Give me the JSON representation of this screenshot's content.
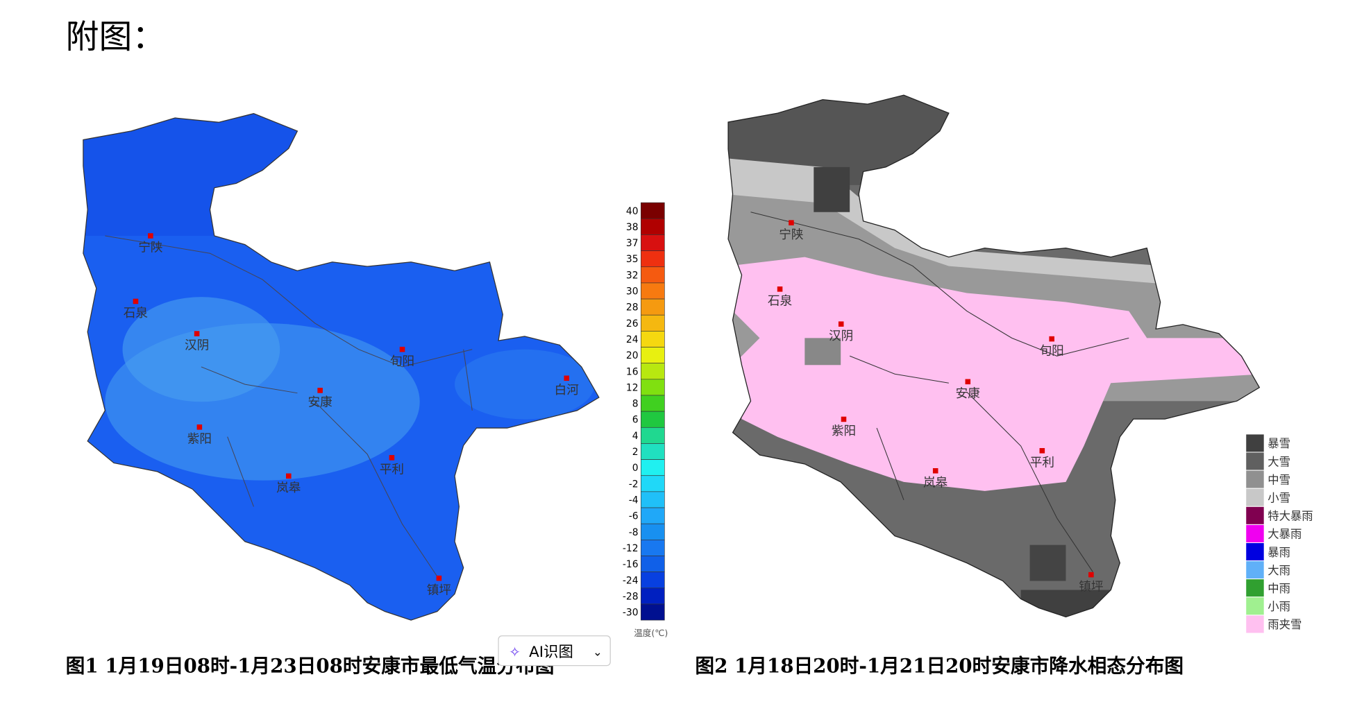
{
  "header": {
    "title": "附图："
  },
  "figure1": {
    "caption": "图1  1月19日08时-1月23日08时安康市最低气温分布图",
    "cities": [
      "宁陕",
      "石泉",
      "汉阴",
      "旬阳",
      "白河",
      "安康",
      "紫阳",
      "平利",
      "岚皋",
      "镇坪"
    ],
    "legend": {
      "title": "温度(℃)",
      "labels": [
        "40",
        "38",
        "37",
        "35",
        "32",
        "30",
        "28",
        "26",
        "24",
        "20",
        "16",
        "12",
        "8",
        "6",
        "4",
        "2",
        "0",
        "-2",
        "-4",
        "-6",
        "-8",
        "-12",
        "-16",
        "-24",
        "-28",
        "-30"
      ],
      "colors": [
        "#7a0000",
        "#b00000",
        "#d81010",
        "#ee3010",
        "#f55a10",
        "#f77a10",
        "#f59a10",
        "#f5b810",
        "#f5d810",
        "#e8f010",
        "#b8e810",
        "#80e010",
        "#40d020",
        "#20c840",
        "#20d890",
        "#20e0c0",
        "#20f0f0",
        "#20d8f8",
        "#20c0f8",
        "#20a8f8",
        "#1890f0",
        "#1878f0",
        "#1060e8",
        "#0840e0",
        "#0020c0",
        "#001090"
      ]
    }
  },
  "figure2": {
    "caption": "图2  1月18日20时-1月21日20时安康市降水相态分布图",
    "cities": [
      "宁陕",
      "石泉",
      "汉阴",
      "旬阳",
      "安康",
      "紫阳",
      "平利",
      "岚皋",
      "镇坪"
    ],
    "legend": {
      "labels": [
        "暴雪",
        "大雪",
        "中雪",
        "小雪",
        "特大暴雨",
        "大暴雨",
        "暴雨",
        "大雨",
        "中雨",
        "小雨",
        "雨夹雪"
      ],
      "colors": [
        "#404040",
        "#606060",
        "#909090",
        "#c8c8c8",
        "#800050",
        "#f000f0",
        "#0000e0",
        "#60b0f8",
        "#30a030",
        "#a0f090",
        "#ffc0f0"
      ]
    }
  },
  "ai_button": {
    "label": "AI识图"
  }
}
